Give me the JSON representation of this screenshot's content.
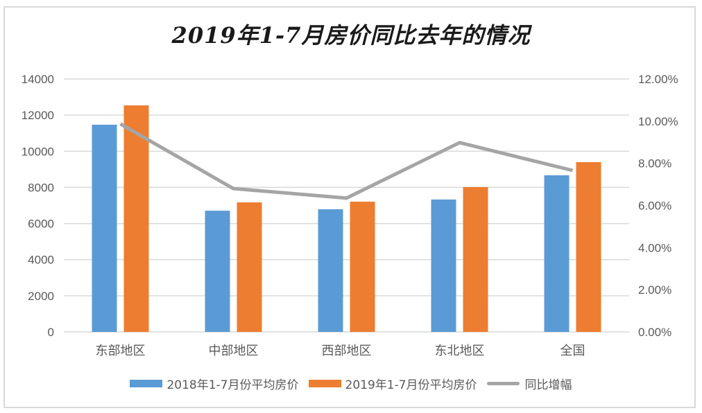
{
  "chart_data": {
    "type": "bar+line",
    "title": "2019年1-7月房价同比去年的情况",
    "categories": [
      "东部地区",
      "中部地区",
      "西部地区",
      "东北地区",
      "全国"
    ],
    "series": [
      {
        "name": "2018年1-7月份平均房价",
        "type": "bar",
        "axis": "left",
        "color": "#5b9bd5",
        "values": [
          11470,
          6710,
          6790,
          7330,
          8670
        ]
      },
      {
        "name": "2019年1-7月份平均房价",
        "type": "bar",
        "axis": "left",
        "color": "#ed7d31",
        "values": [
          12540,
          7170,
          7210,
          8020,
          9400
        ]
      },
      {
        "name": "同比增幅",
        "type": "line",
        "axis": "right",
        "color": "#a5a5a5",
        "values": [
          0.0987,
          0.068,
          0.0635,
          0.0898,
          0.0766
        ]
      }
    ],
    "left_axis": {
      "min": 0,
      "max": 14000,
      "step": 2000,
      "ticks": [
        "0",
        "2000",
        "4000",
        "6000",
        "8000",
        "10000",
        "12000",
        "14000"
      ]
    },
    "right_axis": {
      "min": 0,
      "max": 0.12,
      "step": 0.02,
      "ticks": [
        "0.00%",
        "2.00%",
        "4.00%",
        "6.00%",
        "8.00%",
        "10.00%",
        "12.00%"
      ]
    },
    "xlabel": "",
    "ylabel": "",
    "grid": true,
    "legend_position": "bottom"
  },
  "colors": {
    "gridline": "#d9d9d9",
    "tick_text": "#595959",
    "frame": "#d9d9d9"
  }
}
